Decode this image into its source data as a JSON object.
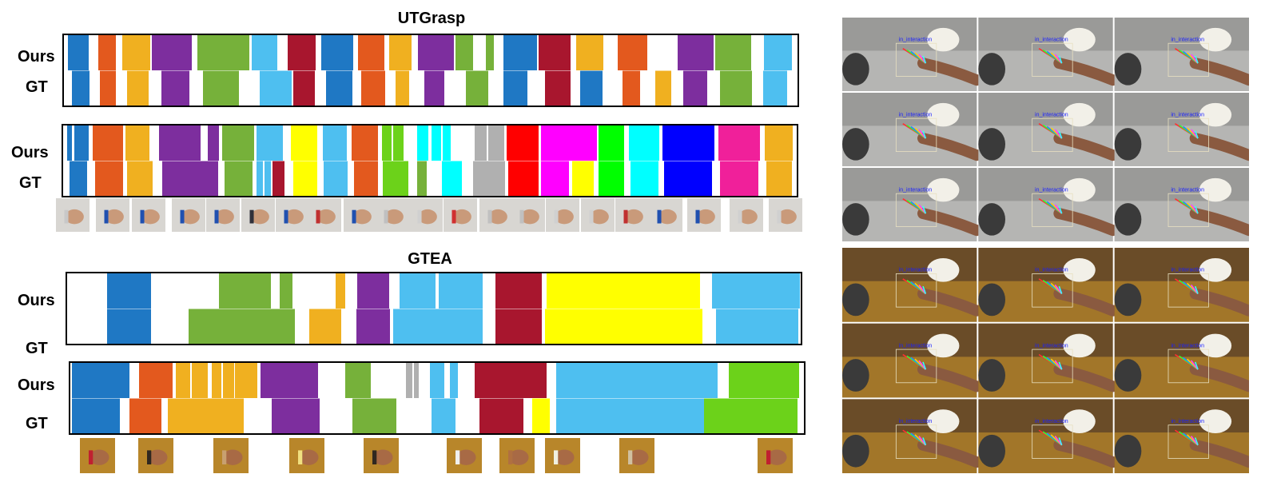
{
  "sections": [
    {
      "title": "UTGrasp",
      "row_labels": [
        "Ours",
        "GT"
      ]
    },
    {
      "row_labels": [
        "Ours",
        "GT"
      ]
    },
    {
      "title": "GTEA",
      "row_labels": [
        "Ours",
        "GT"
      ]
    },
    {
      "row_labels": [
        "Ours",
        "GT"
      ]
    }
  ],
  "colors": {
    "blue": "#1f78c4",
    "orange": "#e3591e",
    "gold": "#f0b020",
    "purple": "#7d2e9e",
    "green": "#76b13a",
    "skyblue": "#4ebff0",
    "crimson": "#a8162e",
    "yellow": "#ffff00",
    "lime": "#6cd21a",
    "cyan": "#00ffff",
    "gray": "#b0b0b0",
    "red": "#ff0000",
    "magenta": "#ff00ff",
    "brightgreen": "#00ff00",
    "navy": "#0000ff",
    "pink": "#f0209a"
  },
  "overlay_tags": {
    "utgrasp_panel": [
      "in_interaction",
      "in_interaction",
      "in_interaction",
      "in_interaction",
      "in_interaction",
      "in_interaction",
      "in_interaction",
      "in_interaction",
      "in_interaction"
    ],
    "gtea_panel": [
      "in_interaction",
      "in_interaction",
      "in_interaction",
      "in_interaction",
      "in_interaction",
      "in_interaction",
      "in_interaction",
      "in_interaction",
      "in_interaction"
    ]
  }
}
